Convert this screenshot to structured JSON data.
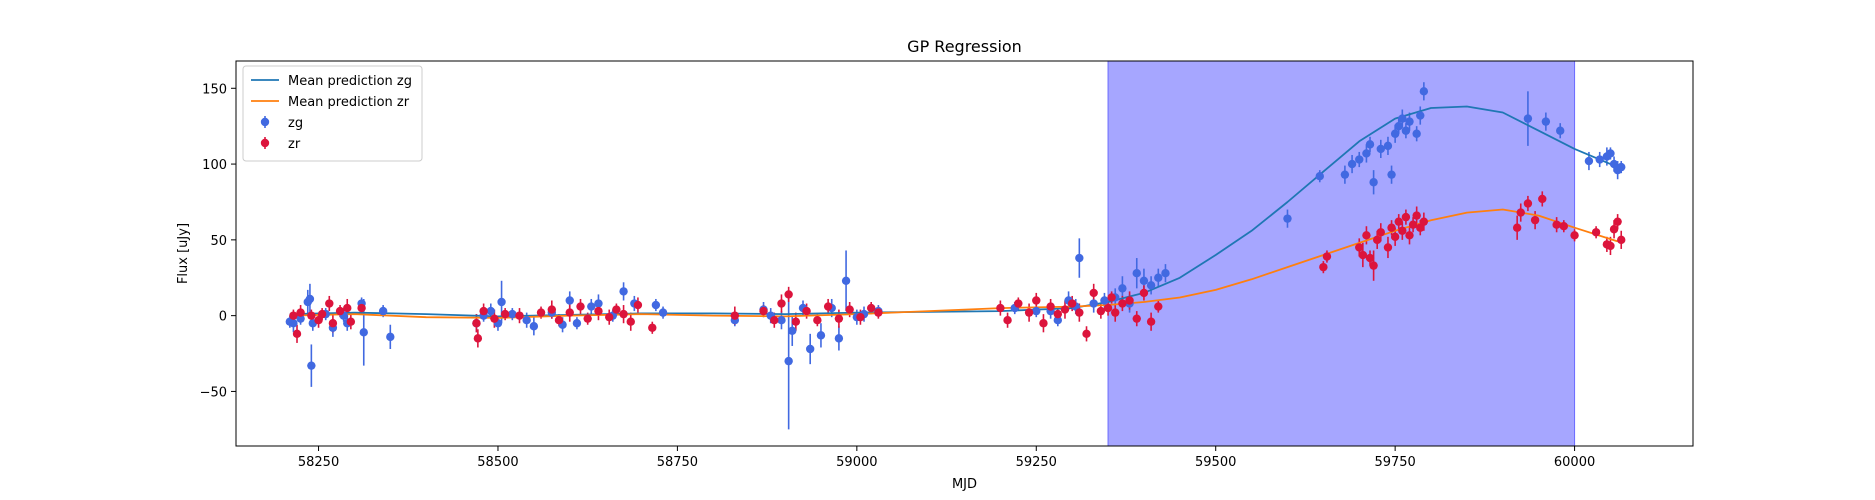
{
  "chart_data": {
    "type": "scatter",
    "title": "GP Regression",
    "xlabel": "MJD",
    "ylabel": "Flux [uJy]",
    "xlim": [
      58135,
      60165
    ],
    "ylim": [
      -86,
      168
    ],
    "xticks": [
      58250,
      58500,
      58750,
      59000,
      59250,
      59500,
      59750,
      60000
    ],
    "yticks": [
      -50,
      0,
      50,
      100,
      150
    ],
    "grid": false,
    "legend_position": "top-left",
    "highlight_region": {
      "x_start": 59350,
      "x_end": 60000,
      "color": "#a6a6ff"
    },
    "lines": [
      {
        "name": "Mean prediction zg",
        "color": "#1f77b4",
        "x": [
          58210,
          58300,
          58400,
          58500,
          58600,
          58700,
          58800,
          58900,
          59000,
          59100,
          59200,
          59300,
          59350,
          59400,
          59450,
          59500,
          59550,
          59600,
          59650,
          59700,
          59750,
          59800,
          59850,
          59900,
          59950,
          60000,
          60060
        ],
        "y": [
          1,
          2,
          1,
          -0.5,
          0.5,
          1.5,
          1.5,
          1,
          2,
          2.5,
          3,
          5,
          9,
          15,
          25,
          40,
          56,
          75,
          95,
          115,
          130,
          137,
          138,
          134,
          122,
          110,
          98
        ]
      },
      {
        "name": "Mean prediction zr",
        "color": "#ff7f0e",
        "x": [
          58210,
          58300,
          58400,
          58500,
          58600,
          58700,
          58800,
          58900,
          59000,
          59100,
          59200,
          59300,
          59350,
          59400,
          59450,
          59500,
          59550,
          59600,
          59650,
          59700,
          59750,
          59800,
          59850,
          59900,
          59950,
          60000,
          60060
        ],
        "y": [
          0,
          1,
          -1,
          -1.5,
          0,
          1,
          0,
          -0.5,
          1,
          3,
          5,
          6,
          7,
          9,
          12,
          17,
          24,
          32,
          40,
          48,
          56,
          63,
          68,
          70,
          66,
          58,
          49
        ]
      }
    ],
    "series": [
      {
        "name": "zg",
        "color": "#4169e1",
        "points": [
          [
            58210,
            -4,
            4
          ],
          [
            58215,
            -5,
            6
          ],
          [
            58225,
            -2,
            4
          ],
          [
            58235,
            9,
            8
          ],
          [
            58238,
            11,
            10
          ],
          [
            58240,
            -33,
            14
          ],
          [
            58242,
            -5,
            5
          ],
          [
            58260,
            1,
            4
          ],
          [
            58270,
            -8,
            6
          ],
          [
            58285,
            0,
            4
          ],
          [
            58290,
            -5,
            5
          ],
          [
            58310,
            8,
            4
          ],
          [
            58313,
            -11,
            22
          ],
          [
            58340,
            3,
            4
          ],
          [
            58350,
            -14,
            8
          ],
          [
            58470,
            -5,
            6
          ],
          [
            58480,
            0,
            4
          ],
          [
            58490,
            3,
            5
          ],
          [
            58500,
            -5,
            5
          ],
          [
            58505,
            9,
            14
          ],
          [
            58520,
            1,
            4
          ],
          [
            58540,
            -3,
            5
          ],
          [
            58550,
            -7,
            6
          ],
          [
            58575,
            2,
            4
          ],
          [
            58590,
            -6,
            5
          ],
          [
            58600,
            10,
            6
          ],
          [
            58610,
            -5,
            4
          ],
          [
            58630,
            6,
            5
          ],
          [
            58640,
            8,
            6
          ],
          [
            58660,
            0,
            4
          ],
          [
            58675,
            16,
            6
          ],
          [
            58690,
            8,
            5
          ],
          [
            58720,
            7,
            4
          ],
          [
            58730,
            2,
            4
          ],
          [
            58830,
            -3,
            4
          ],
          [
            58870,
            4,
            5
          ],
          [
            58880,
            0,
            5
          ],
          [
            58895,
            -3,
            6
          ],
          [
            58905,
            -30,
            45
          ],
          [
            58910,
            -10,
            10
          ],
          [
            58925,
            5,
            5
          ],
          [
            58935,
            -22,
            10
          ],
          [
            58950,
            -13,
            8
          ],
          [
            58965,
            5,
            6
          ],
          [
            58975,
            -15,
            8
          ],
          [
            58985,
            23,
            20
          ],
          [
            59000,
            -1,
            5
          ],
          [
            59010,
            1,
            5
          ],
          [
            59030,
            3,
            4
          ],
          [
            59220,
            5,
            4
          ],
          [
            59250,
            3,
            4
          ],
          [
            59270,
            3,
            5
          ],
          [
            59280,
            -3,
            4
          ],
          [
            59295,
            10,
            6
          ],
          [
            59305,
            6,
            5
          ],
          [
            59310,
            38,
            13
          ],
          [
            59330,
            8,
            6
          ],
          [
            59345,
            10,
            5
          ],
          [
            59360,
            12,
            6
          ],
          [
            59370,
            18,
            8
          ],
          [
            59380,
            8,
            6
          ],
          [
            59390,
            28,
            10
          ],
          [
            59400,
            23,
            8
          ],
          [
            59410,
            20,
            6
          ],
          [
            59420,
            25,
            6
          ],
          [
            59430,
            28,
            6
          ],
          [
            59600,
            64,
            6
          ],
          [
            59645,
            92,
            4
          ],
          [
            59680,
            93,
            6
          ],
          [
            59690,
            100,
            6
          ],
          [
            59700,
            103,
            5
          ],
          [
            59710,
            107,
            6
          ],
          [
            59715,
            113,
            5
          ],
          [
            59720,
            88,
            8
          ],
          [
            59730,
            110,
            6
          ],
          [
            59740,
            112,
            6
          ],
          [
            59745,
            93,
            6
          ],
          [
            59750,
            120,
            6
          ],
          [
            59755,
            125,
            5
          ],
          [
            59760,
            130,
            6
          ],
          [
            59765,
            122,
            5
          ],
          [
            59770,
            128,
            6
          ],
          [
            59780,
            120,
            5
          ],
          [
            59785,
            132,
            6
          ],
          [
            59790,
            148,
            6
          ],
          [
            59935,
            130,
            18
          ],
          [
            59960,
            128,
            6
          ],
          [
            59980,
            122,
            5
          ],
          [
            60020,
            102,
            6
          ],
          [
            60035,
            103,
            5
          ],
          [
            60045,
            105,
            6
          ],
          [
            60050,
            107,
            4
          ],
          [
            60055,
            100,
            5
          ],
          [
            60060,
            96,
            6
          ],
          [
            60065,
            98,
            4
          ]
        ]
      },
      {
        "name": "zr",
        "color": "#dc143c",
        "points": [
          [
            58215,
            0,
            4
          ],
          [
            58220,
            -12,
            6
          ],
          [
            58225,
            2,
            5
          ],
          [
            58240,
            0,
            4
          ],
          [
            58250,
            -3,
            5
          ],
          [
            58255,
            1,
            4
          ],
          [
            58265,
            8,
            5
          ],
          [
            58270,
            -5,
            6
          ],
          [
            58280,
            3,
            4
          ],
          [
            58290,
            5,
            6
          ],
          [
            58295,
            -4,
            5
          ],
          [
            58310,
            5,
            4
          ],
          [
            58470,
            -5,
            6
          ],
          [
            58472,
            -15,
            6
          ],
          [
            58480,
            3,
            5
          ],
          [
            58495,
            -2,
            6
          ],
          [
            58510,
            1,
            4
          ],
          [
            58530,
            0,
            5
          ],
          [
            58560,
            2,
            4
          ],
          [
            58575,
            4,
            6
          ],
          [
            58585,
            -3,
            4
          ],
          [
            58600,
            2,
            6
          ],
          [
            58615,
            6,
            5
          ],
          [
            58625,
            -2,
            4
          ],
          [
            58640,
            3,
            6
          ],
          [
            58655,
            -1,
            5
          ],
          [
            58665,
            4,
            4
          ],
          [
            58675,
            1,
            6
          ],
          [
            58685,
            -4,
            6
          ],
          [
            58695,
            7,
            5
          ],
          [
            58715,
            -8,
            4
          ],
          [
            58830,
            0,
            6
          ],
          [
            58870,
            3,
            4
          ],
          [
            58885,
            -3,
            5
          ],
          [
            58895,
            8,
            6
          ],
          [
            58905,
            14,
            5
          ],
          [
            58915,
            -4,
            6
          ],
          [
            58930,
            3,
            5
          ],
          [
            58945,
            -3,
            4
          ],
          [
            58960,
            6,
            5
          ],
          [
            58975,
            -2,
            6
          ],
          [
            58990,
            4,
            5
          ],
          [
            59005,
            -1,
            5
          ],
          [
            59020,
            5,
            4
          ],
          [
            59030,
            2,
            4
          ],
          [
            59200,
            5,
            5
          ],
          [
            59210,
            -3,
            5
          ],
          [
            59225,
            8,
            4
          ],
          [
            59240,
            2,
            6
          ],
          [
            59250,
            10,
            5
          ],
          [
            59260,
            -5,
            6
          ],
          [
            59270,
            6,
            5
          ],
          [
            59280,
            1,
            4
          ],
          [
            59290,
            4,
            6
          ],
          [
            59300,
            8,
            5
          ],
          [
            59310,
            2,
            6
          ],
          [
            59320,
            -12,
            5
          ],
          [
            59330,
            15,
            6
          ],
          [
            59340,
            3,
            5
          ],
          [
            59350,
            5,
            5
          ],
          [
            59355,
            12,
            4
          ],
          [
            59360,
            2,
            6
          ],
          [
            59370,
            8,
            5
          ],
          [
            59380,
            10,
            6
          ],
          [
            59390,
            -2,
            5
          ],
          [
            59400,
            15,
            5
          ],
          [
            59410,
            -4,
            6
          ],
          [
            59420,
            6,
            4
          ],
          [
            59650,
            32,
            4
          ],
          [
            59655,
            39,
            4
          ],
          [
            59700,
            45,
            6
          ],
          [
            59705,
            40,
            8
          ],
          [
            59710,
            53,
            6
          ],
          [
            59715,
            38,
            5
          ],
          [
            59720,
            33,
            10
          ],
          [
            59725,
            50,
            6
          ],
          [
            59730,
            55,
            6
          ],
          [
            59740,
            45,
            7
          ],
          [
            59745,
            58,
            5
          ],
          [
            59750,
            52,
            6
          ],
          [
            59755,
            62,
            5
          ],
          [
            59760,
            56,
            6
          ],
          [
            59765,
            65,
            5
          ],
          [
            59770,
            53,
            6
          ],
          [
            59775,
            60,
            5
          ],
          [
            59780,
            66,
            6
          ],
          [
            59785,
            58,
            5
          ],
          [
            59790,
            62,
            6
          ],
          [
            59920,
            58,
            8
          ],
          [
            59925,
            68,
            6
          ],
          [
            59935,
            74,
            5
          ],
          [
            59945,
            63,
            6
          ],
          [
            59955,
            77,
            5
          ],
          [
            59975,
            60,
            5
          ],
          [
            59985,
            59,
            4
          ],
          [
            60000,
            53,
            4
          ],
          [
            60030,
            55,
            4
          ],
          [
            60045,
            47,
            5
          ],
          [
            60050,
            46,
            6
          ],
          [
            60055,
            57,
            6
          ],
          [
            60060,
            62,
            5
          ],
          [
            60065,
            50,
            6
          ]
        ]
      }
    ]
  }
}
